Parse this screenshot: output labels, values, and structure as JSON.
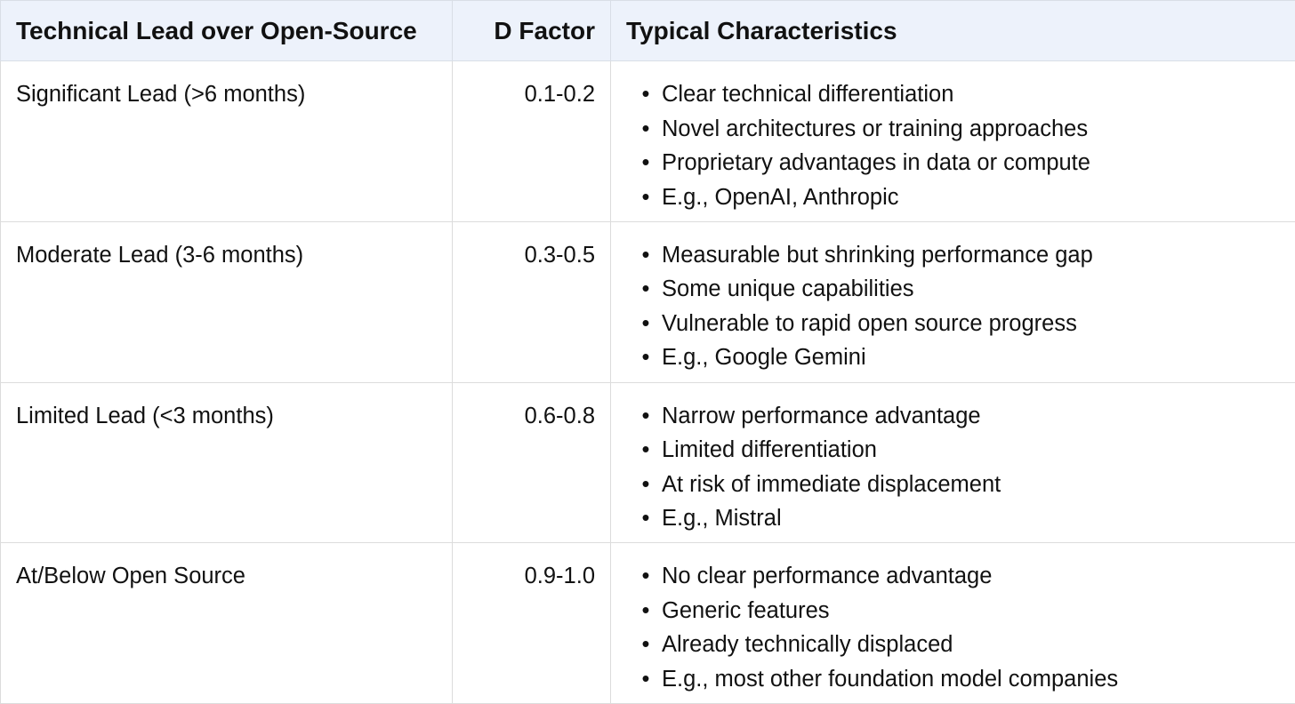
{
  "table": {
    "headers": {
      "lead": "Technical Lead over Open-Source",
      "factor": "D Factor",
      "characteristics": "Typical Characteristics"
    },
    "rows": [
      {
        "lead": "Significant Lead (>6 months)",
        "factor": "0.1-0.2",
        "characteristics": [
          "Clear technical differentiation",
          "Novel architectures or training approaches",
          "Proprietary advantages in data or compute",
          "E.g., OpenAI, Anthropic"
        ]
      },
      {
        "lead": "Moderate Lead (3-6 months)",
        "factor": "0.3-0.5",
        "characteristics": [
          "Measurable but shrinking performance gap",
          "Some unique capabilities",
          "Vulnerable to rapid open source progress",
          "E.g., Google Gemini"
        ]
      },
      {
        "lead": "Limited Lead (<3 months)",
        "factor": "0.6-0.8",
        "characteristics": [
          "Narrow performance advantage",
          "Limited differentiation",
          "At risk of immediate displacement",
          "E.g., Mistral"
        ]
      },
      {
        "lead": "At/Below Open Source",
        "factor": "0.9-1.0",
        "characteristics": [
          "No clear performance advantage",
          "Generic features",
          "Already technically displaced",
          "E.g., most other foundation model companies"
        ]
      }
    ]
  }
}
